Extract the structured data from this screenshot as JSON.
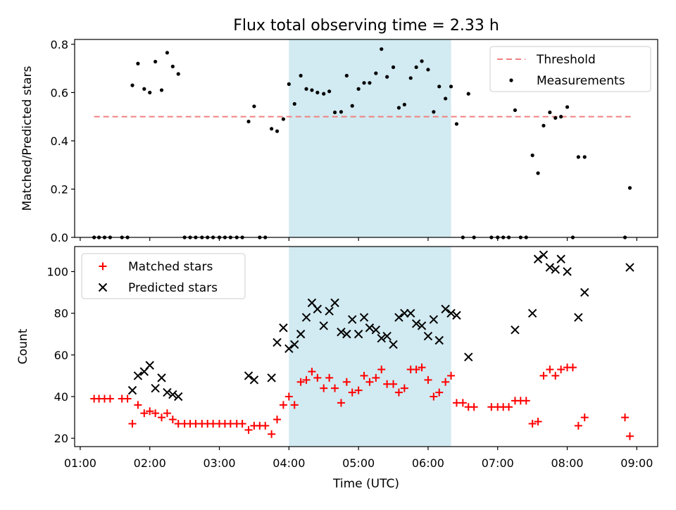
{
  "title": "Flux total observing time = 2.33 h",
  "xlabel": "Time (UTC)",
  "colors": {
    "threshold": "#f08080",
    "measurement": "#000000",
    "matched": "#ff0000",
    "predicted": "#000000",
    "span": "#add8e6"
  },
  "chart_data": [
    {
      "type": "scatter",
      "ylabel": "Matched/Predicted stars",
      "ylim": [
        0,
        0.82
      ],
      "yticks": [
        "0.0",
        "0.2",
        "0.4",
        "0.6",
        "0.8"
      ],
      "ytick_values": [
        0,
        0.2,
        0.4,
        0.6,
        0.8
      ],
      "xlim": [
        0.92,
        9.3
      ],
      "xticks": [
        "01:00",
        "02:00",
        "03:00",
        "04:00",
        "05:00",
        "06:00",
        "07:00",
        "08:00",
        "09:00"
      ],
      "xtick_values": [
        1,
        2,
        3,
        4,
        5,
        6,
        7,
        8,
        9
      ],
      "shaded_span": [
        4.0,
        6.33
      ],
      "legend": [
        "Threshold",
        "Measurements"
      ],
      "legend_position": "upper right",
      "threshold": {
        "name": "Threshold",
        "y": 0.5,
        "x": [
          1.2,
          8.93
        ]
      },
      "series": [
        {
          "name": "Measurements",
          "points": [
            [
              1.2,
              0
            ],
            [
              1.27,
              0
            ],
            [
              1.35,
              0
            ],
            [
              1.43,
              0
            ],
            [
              1.6,
              0
            ],
            [
              1.68,
              0
            ],
            [
              1.75,
              0.63
            ],
            [
              1.83,
              0.72
            ],
            [
              1.92,
              0.615
            ],
            [
              2.0,
              0.6
            ],
            [
              2.08,
              0.728
            ],
            [
              2.17,
              0.61
            ],
            [
              2.25,
              0.765
            ],
            [
              2.33,
              0.708
            ],
            [
              2.41,
              0.677
            ],
            [
              2.5,
              0
            ],
            [
              2.58,
              0
            ],
            [
              2.66,
              0
            ],
            [
              2.75,
              0
            ],
            [
              2.83,
              0
            ],
            [
              2.91,
              0
            ],
            [
              3.0,
              0
            ],
            [
              3.08,
              0
            ],
            [
              3.16,
              0
            ],
            [
              3.25,
              0
            ],
            [
              3.33,
              0
            ],
            [
              3.42,
              0.48
            ],
            [
              3.5,
              0.543
            ],
            [
              3.58,
              0
            ],
            [
              3.66,
              0
            ],
            [
              3.75,
              0.45
            ],
            [
              3.83,
              0.44
            ],
            [
              3.92,
              0.49
            ],
            [
              4.0,
              0.635
            ],
            [
              4.08,
              0.553
            ],
            [
              4.17,
              0.67
            ],
            [
              4.25,
              0.615
            ],
            [
              4.33,
              0.61
            ],
            [
              4.41,
              0.6
            ],
            [
              4.5,
              0.595
            ],
            [
              4.58,
              0.605
            ],
            [
              4.66,
              0.518
            ],
            [
              4.75,
              0.52
            ],
            [
              4.83,
              0.67
            ],
            [
              4.91,
              0.545
            ],
            [
              5.0,
              0.615
            ],
            [
              5.08,
              0.64
            ],
            [
              5.16,
              0.64
            ],
            [
              5.25,
              0.68
            ],
            [
              5.33,
              0.78
            ],
            [
              5.41,
              0.665
            ],
            [
              5.5,
              0.705
            ],
            [
              5.58,
              0.537
            ],
            [
              5.66,
              0.55
            ],
            [
              5.75,
              0.66
            ],
            [
              5.83,
              0.705
            ],
            [
              5.91,
              0.73
            ],
            [
              6.0,
              0.695
            ],
            [
              6.08,
              0.52
            ],
            [
              6.16,
              0.625
            ],
            [
              6.25,
              0.575
            ],
            [
              6.33,
              0.625
            ],
            [
              6.41,
              0.47
            ],
            [
              6.5,
              0
            ],
            [
              6.58,
              0.595
            ],
            [
              6.66,
              0
            ],
            [
              6.91,
              0
            ],
            [
              7.0,
              0
            ],
            [
              7.08,
              0
            ],
            [
              7.16,
              0
            ],
            [
              7.25,
              0.527
            ],
            [
              7.33,
              0
            ],
            [
              7.41,
              0
            ],
            [
              7.5,
              0.34
            ],
            [
              7.58,
              0.266
            ],
            [
              7.66,
              0.463
            ],
            [
              7.75,
              0.518
            ],
            [
              7.83,
              0.495
            ],
            [
              7.91,
              0.5
            ],
            [
              8.0,
              0.54
            ],
            [
              8.08,
              0
            ],
            [
              8.16,
              0.333
            ],
            [
              8.25,
              0.333
            ],
            [
              8.83,
              0
            ],
            [
              8.9,
              0.205
            ]
          ]
        }
      ]
    },
    {
      "type": "scatter",
      "ylabel": "Count",
      "ylim": [
        16,
        112
      ],
      "yticks": [
        "20",
        "40",
        "60",
        "80",
        "100"
      ],
      "ytick_values": [
        20,
        40,
        60,
        80,
        100
      ],
      "xlim": [
        0.92,
        9.3
      ],
      "xticks": [
        "01:00",
        "02:00",
        "03:00",
        "04:00",
        "05:00",
        "06:00",
        "07:00",
        "08:00",
        "09:00"
      ],
      "xtick_values": [
        1,
        2,
        3,
        4,
        5,
        6,
        7,
        8,
        9
      ],
      "shaded_span": [
        4.0,
        6.33
      ],
      "legend": [
        "Matched stars",
        "Predicted stars"
      ],
      "legend_position": "upper left",
      "series": [
        {
          "name": "Matched stars",
          "marker": "plus",
          "points": [
            [
              1.2,
              39
            ],
            [
              1.27,
              39
            ],
            [
              1.35,
              39
            ],
            [
              1.43,
              39
            ],
            [
              1.6,
              39
            ],
            [
              1.68,
              39
            ],
            [
              1.75,
              27
            ],
            [
              1.83,
              36
            ],
            [
              1.92,
              32
            ],
            [
              2.0,
              33
            ],
            [
              2.08,
              32
            ],
            [
              2.17,
              30
            ],
            [
              2.25,
              32
            ],
            [
              2.33,
              29
            ],
            [
              2.41,
              27
            ],
            [
              2.5,
              27
            ],
            [
              2.58,
              27
            ],
            [
              2.66,
              27
            ],
            [
              2.75,
              27
            ],
            [
              2.83,
              27
            ],
            [
              2.91,
              27
            ],
            [
              3.0,
              27
            ],
            [
              3.08,
              27
            ],
            [
              3.16,
              27
            ],
            [
              3.25,
              27
            ],
            [
              3.33,
              27
            ],
            [
              3.42,
              24
            ],
            [
              3.5,
              26
            ],
            [
              3.58,
              26
            ],
            [
              3.66,
              26
            ],
            [
              3.75,
              22
            ],
            [
              3.83,
              29
            ],
            [
              3.92,
              36
            ],
            [
              4.0,
              40
            ],
            [
              4.08,
              36
            ],
            [
              4.17,
              47
            ],
            [
              4.25,
              48
            ],
            [
              4.33,
              52
            ],
            [
              4.41,
              49
            ],
            [
              4.5,
              44
            ],
            [
              4.58,
              49
            ],
            [
              4.66,
              44
            ],
            [
              4.75,
              37
            ],
            [
              4.83,
              47
            ],
            [
              4.91,
              42
            ],
            [
              5.0,
              43
            ],
            [
              5.08,
              50
            ],
            [
              5.16,
              47
            ],
            [
              5.25,
              49
            ],
            [
              5.33,
              53
            ],
            [
              5.41,
              46
            ],
            [
              5.5,
              46
            ],
            [
              5.58,
              42
            ],
            [
              5.66,
              44
            ],
            [
              5.75,
              53
            ],
            [
              5.83,
              53
            ],
            [
              5.91,
              54
            ],
            [
              6.0,
              48
            ],
            [
              6.08,
              40
            ],
            [
              6.16,
              42
            ],
            [
              6.25,
              47
            ],
            [
              6.33,
              50
            ],
            [
              6.41,
              37
            ],
            [
              6.5,
              37
            ],
            [
              6.58,
              35
            ],
            [
              6.66,
              35
            ],
            [
              6.91,
              35
            ],
            [
              7.0,
              35
            ],
            [
              7.08,
              35
            ],
            [
              7.16,
              35
            ],
            [
              7.25,
              38
            ],
            [
              7.33,
              38
            ],
            [
              7.41,
              38
            ],
            [
              7.5,
              27
            ],
            [
              7.58,
              28
            ],
            [
              7.66,
              50
            ],
            [
              7.75,
              53
            ],
            [
              7.83,
              50
            ],
            [
              7.91,
              53
            ],
            [
              8.0,
              54
            ],
            [
              8.08,
              54
            ],
            [
              8.16,
              26
            ],
            [
              8.25,
              30
            ],
            [
              8.83,
              30
            ],
            [
              8.9,
              21
            ]
          ]
        },
        {
          "name": "Predicted stars",
          "marker": "x",
          "points": [
            [
              1.75,
              43
            ],
            [
              1.83,
              50
            ],
            [
              1.92,
              52
            ],
            [
              2.0,
              55
            ],
            [
              2.08,
              44
            ],
            [
              2.17,
              49
            ],
            [
              2.25,
              42
            ],
            [
              2.33,
              41
            ],
            [
              2.41,
              40
            ],
            [
              3.42,
              50
            ],
            [
              3.5,
              48
            ],
            [
              3.75,
              49
            ],
            [
              3.83,
              66
            ],
            [
              3.92,
              73
            ],
            [
              4.0,
              63
            ],
            [
              4.08,
              65
            ],
            [
              4.17,
              70
            ],
            [
              4.25,
              78
            ],
            [
              4.33,
              85
            ],
            [
              4.41,
              82
            ],
            [
              4.5,
              74
            ],
            [
              4.58,
              81
            ],
            [
              4.66,
              85
            ],
            [
              4.75,
              71
            ],
            [
              4.83,
              70
            ],
            [
              4.91,
              77
            ],
            [
              5.0,
              70
            ],
            [
              5.08,
              78
            ],
            [
              5.16,
              73
            ],
            [
              5.25,
              72
            ],
            [
              5.33,
              68
            ],
            [
              5.41,
              69
            ],
            [
              5.5,
              65
            ],
            [
              5.58,
              78
            ],
            [
              5.66,
              80
            ],
            [
              5.75,
              80
            ],
            [
              5.83,
              75
            ],
            [
              5.91,
              74
            ],
            [
              6.0,
              69
            ],
            [
              6.08,
              77
            ],
            [
              6.16,
              67
            ],
            [
              6.25,
              82
            ],
            [
              6.33,
              80
            ],
            [
              6.41,
              79
            ],
            [
              6.58,
              59
            ],
            [
              7.25,
              72
            ],
            [
              7.5,
              80
            ],
            [
              7.58,
              106
            ],
            [
              7.66,
              108
            ],
            [
              7.75,
              102
            ],
            [
              7.83,
              101
            ],
            [
              7.91,
              106
            ],
            [
              8.0,
              100
            ],
            [
              8.16,
              78
            ],
            [
              8.25,
              90
            ],
            [
              8.9,
              102
            ]
          ]
        }
      ]
    }
  ]
}
